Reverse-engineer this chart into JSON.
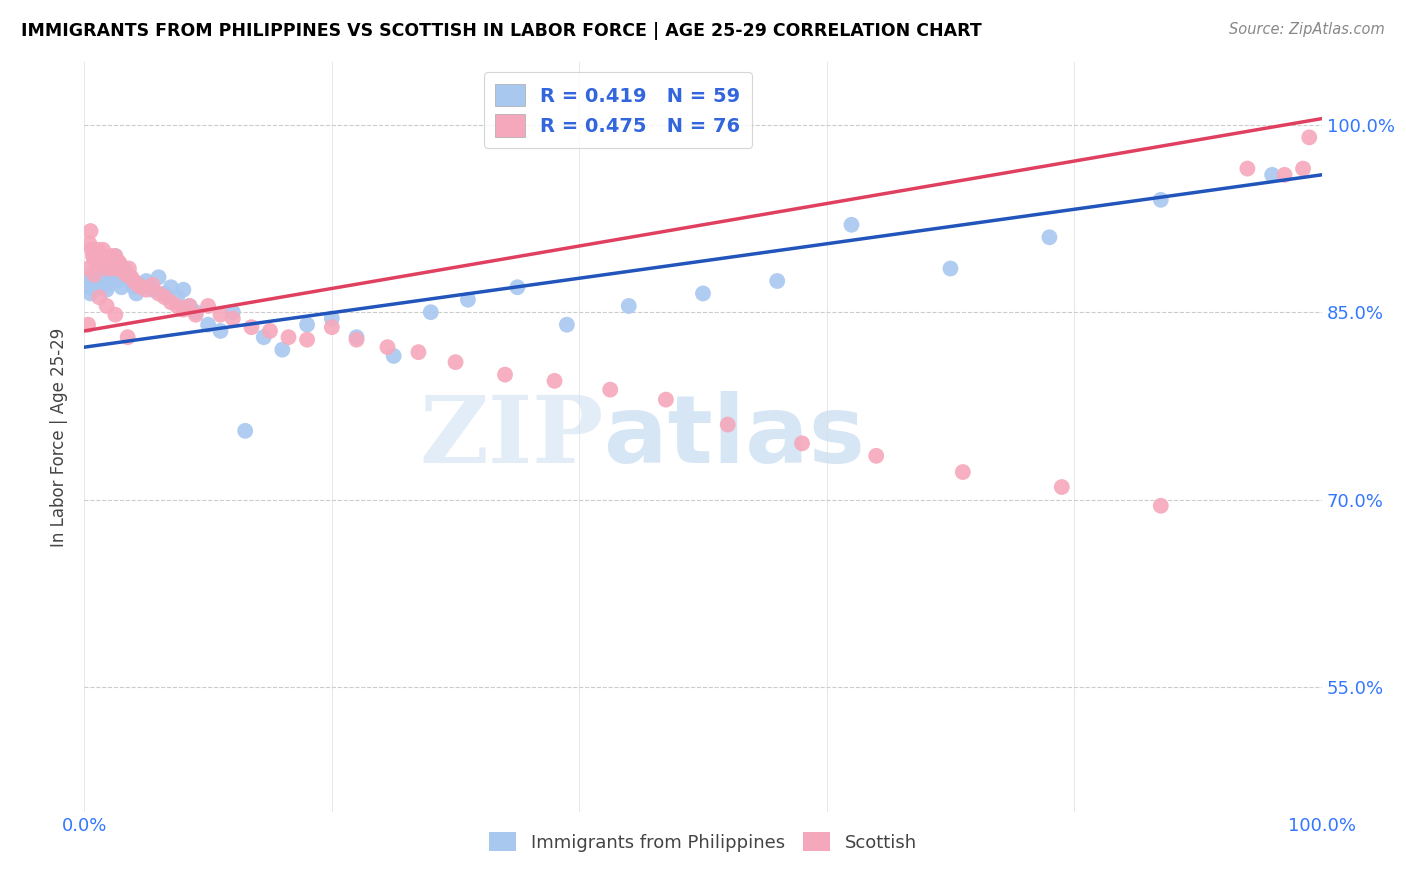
{
  "title": "IMMIGRANTS FROM PHILIPPINES VS SCOTTISH IN LABOR FORCE | AGE 25-29 CORRELATION CHART",
  "source": "Source: ZipAtlas.com",
  "ylabel": "In Labor Force | Age 25-29",
  "xlim": [
    0.0,
    1.0
  ],
  "ylim": [
    0.45,
    1.05
  ],
  "ytick_positions": [
    0.55,
    0.7,
    0.85,
    1.0
  ],
  "ytick_labels": [
    "55.0%",
    "70.0%",
    "85.0%",
    "100.0%"
  ],
  "philippines_color": "#A8C8F0",
  "scottish_color": "#F5A8BC",
  "trendline_philippines_color": "#2255BB",
  "trendline_scottish_color": "#E04060",
  "R_philippines": 0.419,
  "N_philippines": 59,
  "R_scottish": 0.475,
  "N_scottish": 76,
  "watermark_zip": "ZIP",
  "watermark_atlas": "atlas",
  "phil_trendline_x0": 0.0,
  "phil_trendline_y0": 0.822,
  "phil_trendline_x1": 1.0,
  "phil_trendline_y1": 0.96,
  "scot_trendline_x0": 0.0,
  "scot_trendline_y0": 0.835,
  "scot_trendline_x1": 1.0,
  "scot_trendline_y1": 1.005,
  "philippines_x": [
    0.003,
    0.004,
    0.005,
    0.006,
    0.007,
    0.008,
    0.009,
    0.01,
    0.011,
    0.012,
    0.013,
    0.014,
    0.015,
    0.016,
    0.017,
    0.018,
    0.019,
    0.02,
    0.022,
    0.025,
    0.027,
    0.03,
    0.032,
    0.035,
    0.038,
    0.04,
    0.042,
    0.045,
    0.05,
    0.055,
    0.06,
    0.065,
    0.07,
    0.075,
    0.08,
    0.085,
    0.09,
    0.1,
    0.11,
    0.12,
    0.13,
    0.145,
    0.16,
    0.18,
    0.2,
    0.22,
    0.25,
    0.28,
    0.31,
    0.35,
    0.39,
    0.44,
    0.5,
    0.56,
    0.62,
    0.7,
    0.78,
    0.87,
    0.96
  ],
  "philippines_y": [
    0.87,
    0.875,
    0.865,
    0.88,
    0.872,
    0.868,
    0.878,
    0.875,
    0.882,
    0.87,
    0.885,
    0.878,
    0.872,
    0.88,
    0.875,
    0.868,
    0.872,
    0.88,
    0.875,
    0.895,
    0.875,
    0.87,
    0.885,
    0.88,
    0.875,
    0.87,
    0.865,
    0.872,
    0.875,
    0.868,
    0.878,
    0.865,
    0.87,
    0.862,
    0.868,
    0.855,
    0.85,
    0.84,
    0.835,
    0.85,
    0.755,
    0.83,
    0.82,
    0.84,
    0.845,
    0.83,
    0.815,
    0.85,
    0.86,
    0.87,
    0.84,
    0.855,
    0.865,
    0.875,
    0.92,
    0.885,
    0.91,
    0.94,
    0.96
  ],
  "scottish_x": [
    0.003,
    0.004,
    0.005,
    0.006,
    0.007,
    0.008,
    0.009,
    0.01,
    0.011,
    0.012,
    0.013,
    0.014,
    0.015,
    0.016,
    0.017,
    0.018,
    0.019,
    0.02,
    0.021,
    0.022,
    0.023,
    0.024,
    0.025,
    0.026,
    0.027,
    0.028,
    0.029,
    0.03,
    0.032,
    0.034,
    0.036,
    0.038,
    0.04,
    0.043,
    0.046,
    0.05,
    0.055,
    0.06,
    0.065,
    0.07,
    0.075,
    0.08,
    0.085,
    0.09,
    0.1,
    0.11,
    0.12,
    0.135,
    0.15,
    0.165,
    0.18,
    0.2,
    0.22,
    0.245,
    0.27,
    0.3,
    0.34,
    0.38,
    0.425,
    0.47,
    0.52,
    0.58,
    0.64,
    0.71,
    0.79,
    0.87,
    0.94,
    0.97,
    0.985,
    0.99,
    0.003,
    0.008,
    0.012,
    0.018,
    0.025,
    0.035
  ],
  "scottish_y": [
    0.885,
    0.905,
    0.915,
    0.9,
    0.895,
    0.892,
    0.898,
    0.895,
    0.9,
    0.892,
    0.888,
    0.895,
    0.9,
    0.892,
    0.888,
    0.885,
    0.892,
    0.888,
    0.895,
    0.885,
    0.892,
    0.888,
    0.895,
    0.888,
    0.885,
    0.89,
    0.888,
    0.885,
    0.882,
    0.88,
    0.885,
    0.878,
    0.875,
    0.872,
    0.87,
    0.868,
    0.872,
    0.865,
    0.862,
    0.858,
    0.855,
    0.852,
    0.855,
    0.848,
    0.855,
    0.848,
    0.845,
    0.838,
    0.835,
    0.83,
    0.828,
    0.838,
    0.828,
    0.822,
    0.818,
    0.81,
    0.8,
    0.795,
    0.788,
    0.78,
    0.76,
    0.745,
    0.735,
    0.722,
    0.71,
    0.695,
    0.965,
    0.96,
    0.965,
    0.99,
    0.84,
    0.88,
    0.862,
    0.855,
    0.848,
    0.83
  ]
}
